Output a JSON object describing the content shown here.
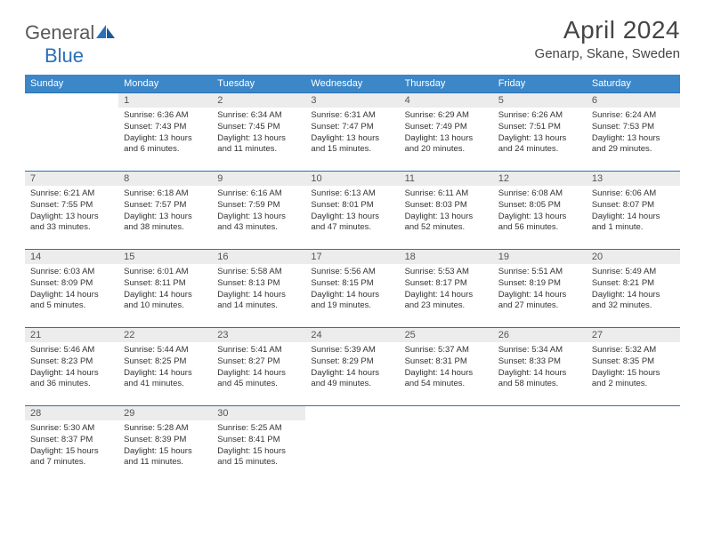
{
  "logo": {
    "text1": "General",
    "text2": "Blue"
  },
  "title": "April 2024",
  "location": "Genarp, Skane, Sweden",
  "colors": {
    "header_bg": "#3b87c8",
    "header_text": "#ffffff",
    "daynum_bg": "#ececec",
    "border": "#2a70b8",
    "logo_gray": "#5a5a5a",
    "logo_blue": "#2a70b8"
  },
  "weekdays": [
    "Sunday",
    "Monday",
    "Tuesday",
    "Wednesday",
    "Thursday",
    "Friday",
    "Saturday"
  ],
  "weeks": [
    [
      null,
      {
        "n": "1",
        "sr": "6:36 AM",
        "ss": "7:43 PM",
        "dl": "13 hours and 6 minutes."
      },
      {
        "n": "2",
        "sr": "6:34 AM",
        "ss": "7:45 PM",
        "dl": "13 hours and 11 minutes."
      },
      {
        "n": "3",
        "sr": "6:31 AM",
        "ss": "7:47 PM",
        "dl": "13 hours and 15 minutes."
      },
      {
        "n": "4",
        "sr": "6:29 AM",
        "ss": "7:49 PM",
        "dl": "13 hours and 20 minutes."
      },
      {
        "n": "5",
        "sr": "6:26 AM",
        "ss": "7:51 PM",
        "dl": "13 hours and 24 minutes."
      },
      {
        "n": "6",
        "sr": "6:24 AM",
        "ss": "7:53 PM",
        "dl": "13 hours and 29 minutes."
      }
    ],
    [
      {
        "n": "7",
        "sr": "6:21 AM",
        "ss": "7:55 PM",
        "dl": "13 hours and 33 minutes."
      },
      {
        "n": "8",
        "sr": "6:18 AM",
        "ss": "7:57 PM",
        "dl": "13 hours and 38 minutes."
      },
      {
        "n": "9",
        "sr": "6:16 AM",
        "ss": "7:59 PM",
        "dl": "13 hours and 43 minutes."
      },
      {
        "n": "10",
        "sr": "6:13 AM",
        "ss": "8:01 PM",
        "dl": "13 hours and 47 minutes."
      },
      {
        "n": "11",
        "sr": "6:11 AM",
        "ss": "8:03 PM",
        "dl": "13 hours and 52 minutes."
      },
      {
        "n": "12",
        "sr": "6:08 AM",
        "ss": "8:05 PM",
        "dl": "13 hours and 56 minutes."
      },
      {
        "n": "13",
        "sr": "6:06 AM",
        "ss": "8:07 PM",
        "dl": "14 hours and 1 minute."
      }
    ],
    [
      {
        "n": "14",
        "sr": "6:03 AM",
        "ss": "8:09 PM",
        "dl": "14 hours and 5 minutes."
      },
      {
        "n": "15",
        "sr": "6:01 AM",
        "ss": "8:11 PM",
        "dl": "14 hours and 10 minutes."
      },
      {
        "n": "16",
        "sr": "5:58 AM",
        "ss": "8:13 PM",
        "dl": "14 hours and 14 minutes."
      },
      {
        "n": "17",
        "sr": "5:56 AM",
        "ss": "8:15 PM",
        "dl": "14 hours and 19 minutes."
      },
      {
        "n": "18",
        "sr": "5:53 AM",
        "ss": "8:17 PM",
        "dl": "14 hours and 23 minutes."
      },
      {
        "n": "19",
        "sr": "5:51 AM",
        "ss": "8:19 PM",
        "dl": "14 hours and 27 minutes."
      },
      {
        "n": "20",
        "sr": "5:49 AM",
        "ss": "8:21 PM",
        "dl": "14 hours and 32 minutes."
      }
    ],
    [
      {
        "n": "21",
        "sr": "5:46 AM",
        "ss": "8:23 PM",
        "dl": "14 hours and 36 minutes."
      },
      {
        "n": "22",
        "sr": "5:44 AM",
        "ss": "8:25 PM",
        "dl": "14 hours and 41 minutes."
      },
      {
        "n": "23",
        "sr": "5:41 AM",
        "ss": "8:27 PM",
        "dl": "14 hours and 45 minutes."
      },
      {
        "n": "24",
        "sr": "5:39 AM",
        "ss": "8:29 PM",
        "dl": "14 hours and 49 minutes."
      },
      {
        "n": "25",
        "sr": "5:37 AM",
        "ss": "8:31 PM",
        "dl": "14 hours and 54 minutes."
      },
      {
        "n": "26",
        "sr": "5:34 AM",
        "ss": "8:33 PM",
        "dl": "14 hours and 58 minutes."
      },
      {
        "n": "27",
        "sr": "5:32 AM",
        "ss": "8:35 PM",
        "dl": "15 hours and 2 minutes."
      }
    ],
    [
      {
        "n": "28",
        "sr": "5:30 AM",
        "ss": "8:37 PM",
        "dl": "15 hours and 7 minutes."
      },
      {
        "n": "29",
        "sr": "5:28 AM",
        "ss": "8:39 PM",
        "dl": "15 hours and 11 minutes."
      },
      {
        "n": "30",
        "sr": "5:25 AM",
        "ss": "8:41 PM",
        "dl": "15 hours and 15 minutes."
      },
      null,
      null,
      null,
      null
    ]
  ],
  "labels": {
    "sunrise": "Sunrise:",
    "sunset": "Sunset:",
    "daylight": "Daylight:"
  }
}
